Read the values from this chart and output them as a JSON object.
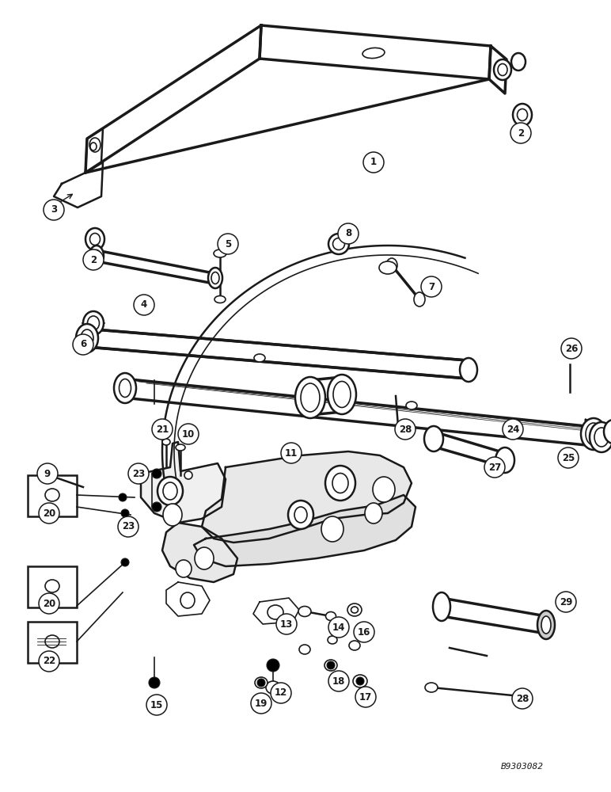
{
  "bg_color": "#ffffff",
  "line_color": "#1a1a1a",
  "fig_width": 7.72,
  "fig_height": 10.0,
  "dpi": 100,
  "watermark": "B9303082"
}
